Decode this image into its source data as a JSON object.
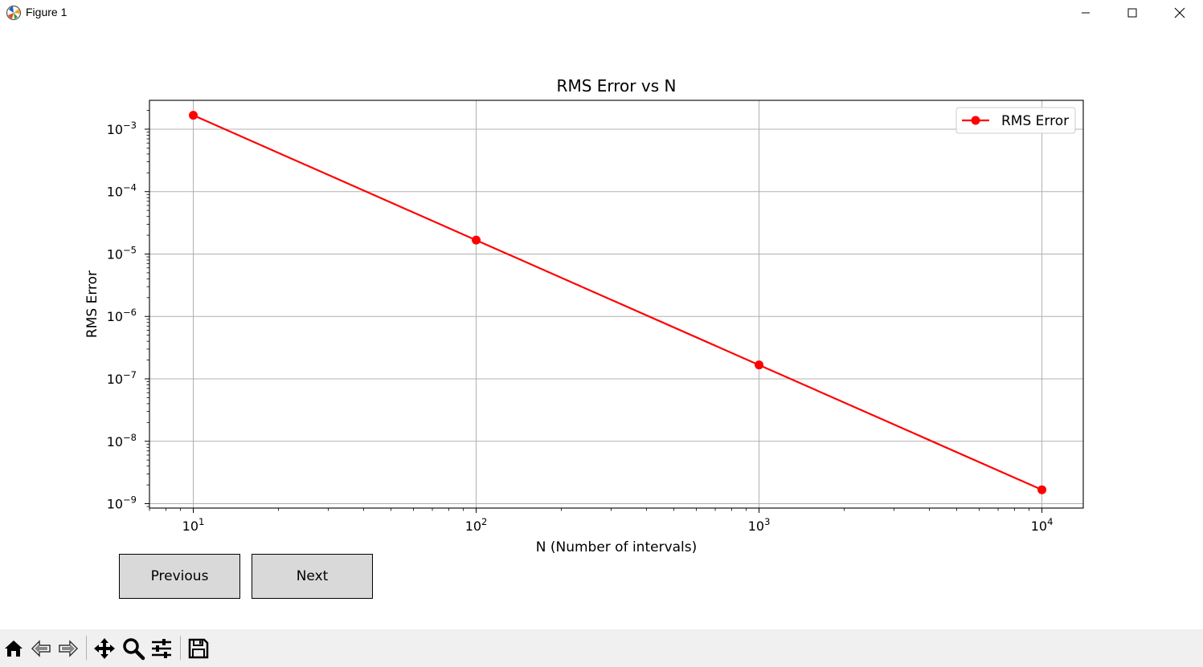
{
  "window": {
    "title": "Figure 1"
  },
  "buttons": {
    "previous_label": "Previous",
    "next_label": "Next"
  },
  "toolbar": {
    "items": [
      "home-icon",
      "back-icon",
      "forward-icon",
      "pan-icon",
      "zoom-icon",
      "configure-icon",
      "save-icon"
    ]
  },
  "colors": {
    "series": "#ff0000",
    "grid": "#b0b0b0",
    "toolbar_bg": "#f0f0f0",
    "button_bg": "#d9d9d9"
  },
  "chart_data": {
    "type": "line",
    "title": "RMS Error vs N",
    "xlabel": "N (Number of intervals)",
    "ylabel": "RMS Error",
    "xscale": "log",
    "yscale": "log",
    "xlim": [
      7,
      14000
    ],
    "ylim": [
      8.5e-10,
      0.0029
    ],
    "grid": true,
    "legend_position": "top-right",
    "x_ticks": [
      {
        "value": 10,
        "base": "10",
        "exp": "1"
      },
      {
        "value": 100,
        "base": "10",
        "exp": "2"
      },
      {
        "value": 1000,
        "base": "10",
        "exp": "3"
      },
      {
        "value": 10000,
        "base": "10",
        "exp": "4"
      }
    ],
    "y_ticks": [
      {
        "value": 0.001,
        "base": "10",
        "exp": "−3"
      },
      {
        "value": 0.0001,
        "base": "10",
        "exp": "−4"
      },
      {
        "value": 1e-05,
        "base": "10",
        "exp": "−5"
      },
      {
        "value": 1e-06,
        "base": "10",
        "exp": "−6"
      },
      {
        "value": 1e-07,
        "base": "10",
        "exp": "−7"
      },
      {
        "value": 1e-08,
        "base": "10",
        "exp": "−8"
      },
      {
        "value": 1e-09,
        "base": "10",
        "exp": "−9"
      }
    ],
    "series": [
      {
        "name": "RMS Error",
        "color": "#ff0000",
        "marker": "circle",
        "x": [
          10,
          100,
          1000,
          10000
        ],
        "y": [
          0.00167,
          1.67e-05,
          1.67e-07,
          1.67e-09
        ]
      }
    ]
  }
}
